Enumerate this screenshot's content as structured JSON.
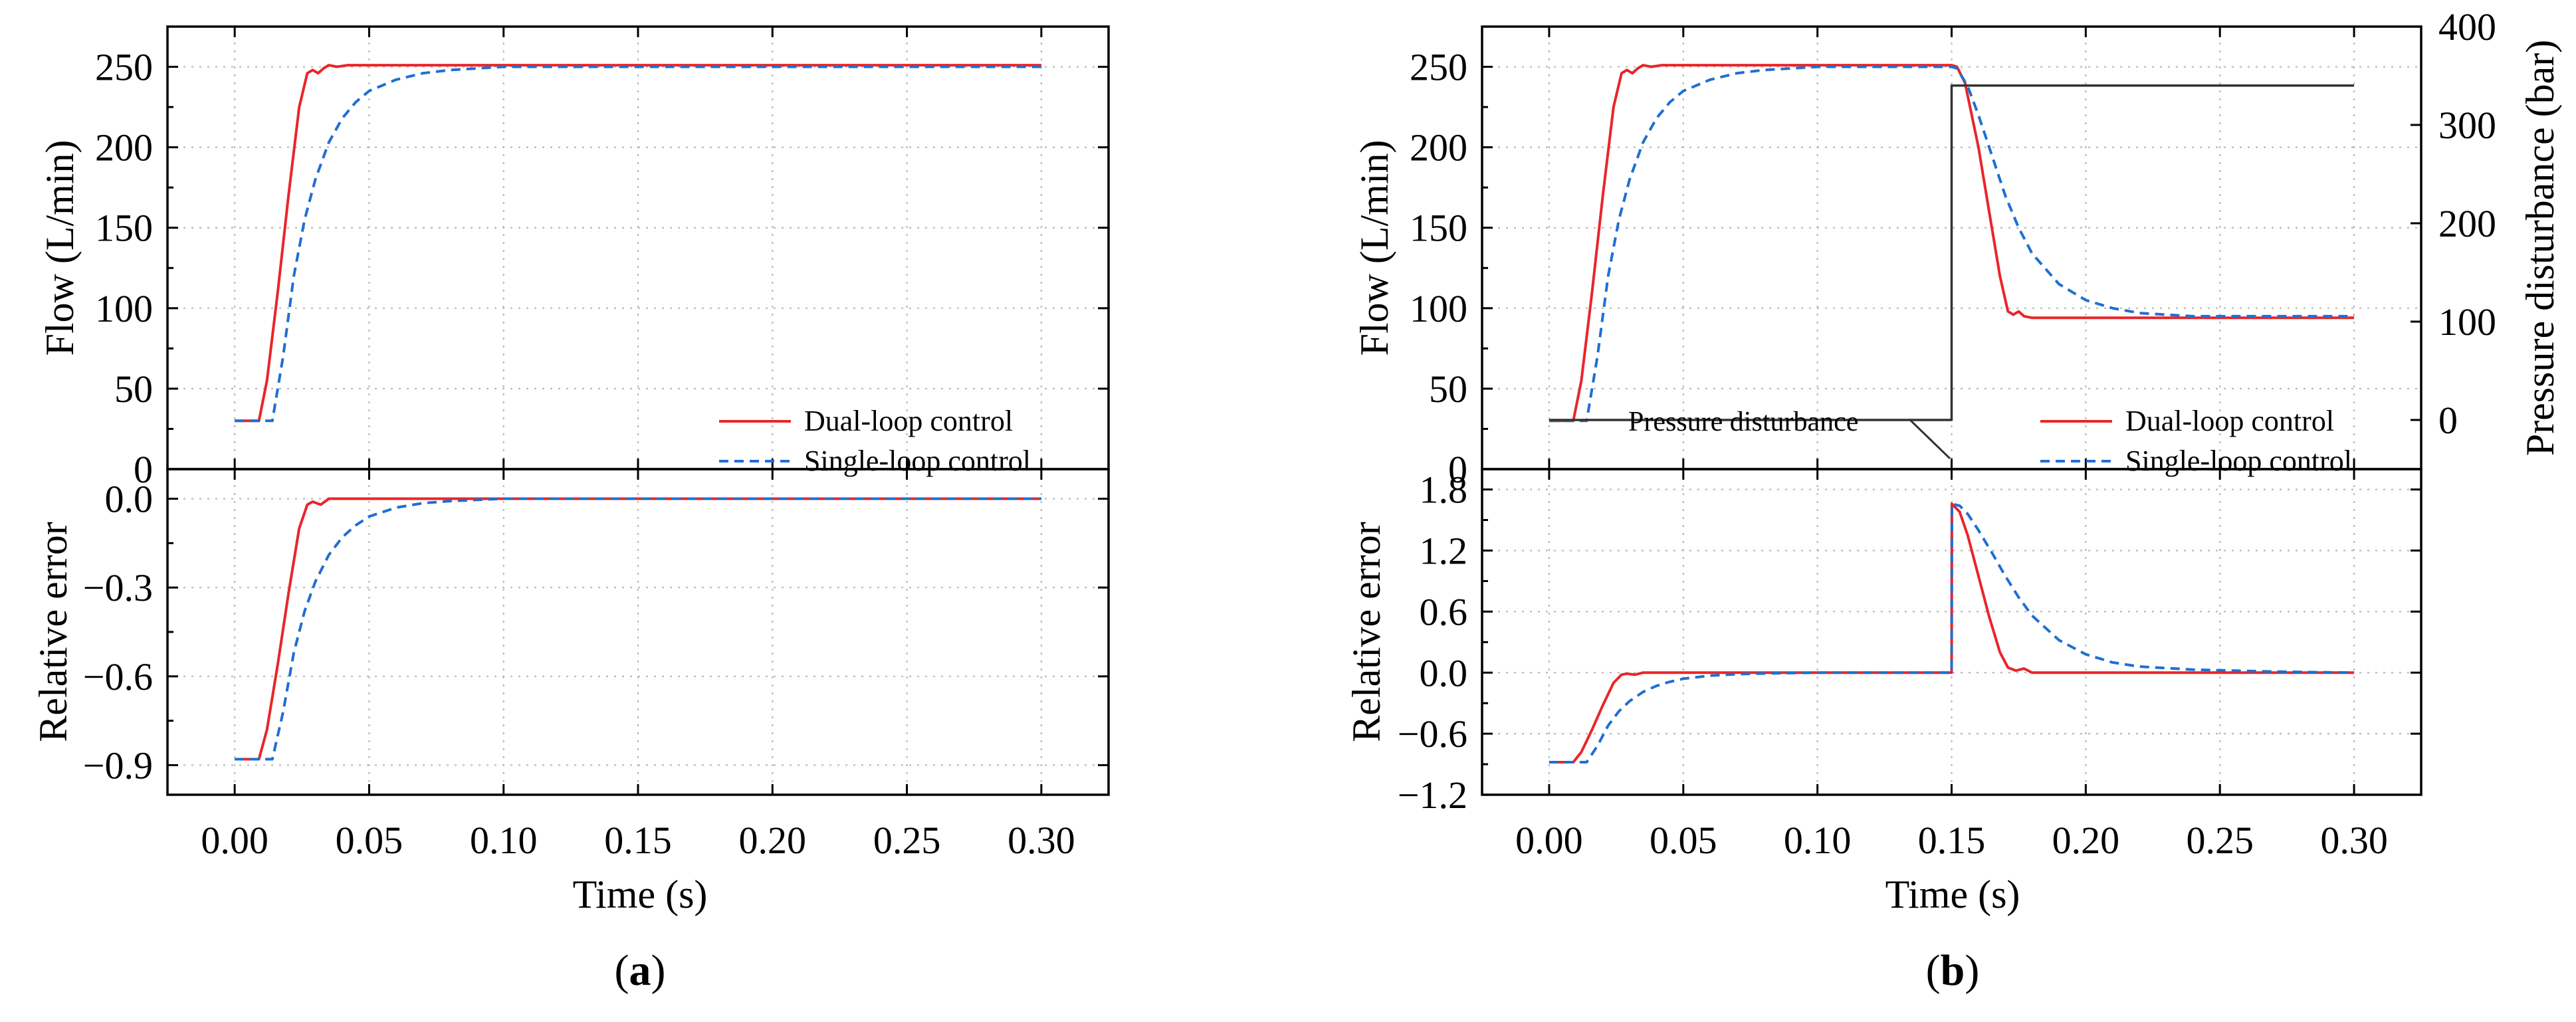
{
  "chart_data": [
    {
      "panel": "(a)",
      "type": "line",
      "xlabel": "Time (s)",
      "xlim": [
        -0.025,
        0.325
      ],
      "xticks": [
        "0.00",
        "0.05",
        "0.10",
        "0.15",
        "0.20",
        "0.25",
        "0.30"
      ],
      "subplots": [
        {
          "ylabel": "Flow (L/min)",
          "ylim": [
            0,
            275
          ],
          "yticks": [
            "0",
            "50",
            "100",
            "150",
            "200",
            "250"
          ],
          "legend_position": "bottom-right",
          "series": [
            {
              "name": "Dual-loop control",
              "color": "#e8262a",
              "x": [
                0,
                0.009,
                0.012,
                0.016,
                0.02,
                0.024,
                0.027,
                0.029,
                0.031,
                0.033,
                0.035,
                0.038,
                0.042,
                0.05,
                0.1,
                0.15,
                0.2,
                0.25,
                0.3
              ],
              "y": [
                30,
                30,
                55,
                110,
                170,
                225,
                246,
                248,
                246,
                249,
                251,
                250,
                251,
                251,
                251,
                251,
                251,
                251,
                251
              ]
            },
            {
              "name": "Single-loop control",
              "color": "#1f6fd1",
              "x": [
                0,
                0.014,
                0.018,
                0.022,
                0.026,
                0.03,
                0.035,
                0.04,
                0.045,
                0.05,
                0.06,
                0.07,
                0.08,
                0.09,
                0.1,
                0.12,
                0.15,
                0.2,
                0.25,
                0.3
              ],
              "y": [
                30,
                30,
                70,
                120,
                155,
                180,
                203,
                218,
                228,
                235,
                242,
                246,
                248,
                249,
                250,
                250,
                250,
                250,
                250,
                250
              ]
            }
          ]
        },
        {
          "ylabel": "Relative error",
          "ylim": [
            -1.0,
            0.1
          ],
          "yticks": [
            "0.0",
            "-0.3",
            "-0.6",
            "-0.9"
          ],
          "series": [
            {
              "name": "Dual-loop control",
              "color": "#e8262a",
              "x": [
                0,
                0.009,
                0.012,
                0.016,
                0.02,
                0.024,
                0.027,
                0.029,
                0.032,
                0.035,
                0.04,
                0.3
              ],
              "y": [
                -0.88,
                -0.88,
                -0.78,
                -0.56,
                -0.32,
                -0.1,
                -0.02,
                -0.01,
                -0.02,
                0.0,
                0.0,
                0.0
              ]
            },
            {
              "name": "Single-loop control",
              "color": "#1f6fd1",
              "x": [
                0,
                0.014,
                0.018,
                0.022,
                0.026,
                0.03,
                0.035,
                0.04,
                0.045,
                0.05,
                0.06,
                0.07,
                0.08,
                0.09,
                0.1,
                0.12,
                0.3
              ],
              "y": [
                -0.88,
                -0.88,
                -0.72,
                -0.52,
                -0.38,
                -0.28,
                -0.19,
                -0.13,
                -0.09,
                -0.06,
                -0.03,
                -0.015,
                -0.008,
                -0.004,
                0.0,
                0.0,
                0.0
              ]
            }
          ]
        }
      ]
    },
    {
      "panel": "(b)",
      "type": "line",
      "xlabel": "Time (s)",
      "xlim": [
        -0.025,
        0.325
      ],
      "xticks": [
        "0.00",
        "0.05",
        "0.10",
        "0.15",
        "0.20",
        "0.25",
        "0.30"
      ],
      "subplots": [
        {
          "ylabel": "Flow (L/min)",
          "ylim": [
            0,
            275
          ],
          "yticks": [
            "0",
            "50",
            "100",
            "150",
            "200",
            "250"
          ],
          "y2label": "Pressure disturbance (bar)",
          "y2lim": [
            -50,
            400
          ],
          "y2ticks": [
            "0",
            "100",
            "200",
            "300",
            "400"
          ],
          "legend_position": "bottom-right",
          "annotation": "Pressure disturbance",
          "series": [
            {
              "name": "Dual-loop control",
              "color": "#e8262a",
              "x": [
                0,
                0.009,
                0.012,
                0.016,
                0.02,
                0.024,
                0.027,
                0.029,
                0.031,
                0.033,
                0.035,
                0.038,
                0.042,
                0.05,
                0.1,
                0.15,
                0.152,
                0.155,
                0.16,
                0.164,
                0.168,
                0.171,
                0.173,
                0.175,
                0.177,
                0.18,
                0.185,
                0.2,
                0.25,
                0.3
              ],
              "y": [
                30,
                30,
                55,
                110,
                170,
                225,
                246,
                248,
                246,
                249,
                251,
                250,
                251,
                251,
                251,
                251,
                250,
                240,
                200,
                160,
                120,
                98,
                96,
                98,
                95,
                94,
                94,
                94,
                94,
                94
              ]
            },
            {
              "name": "Single-loop control",
              "color": "#1f6fd1",
              "x": [
                0,
                0.014,
                0.018,
                0.022,
                0.026,
                0.03,
                0.035,
                0.04,
                0.045,
                0.05,
                0.06,
                0.07,
                0.08,
                0.09,
                0.1,
                0.12,
                0.15,
                0.152,
                0.156,
                0.16,
                0.165,
                0.17,
                0.175,
                0.18,
                0.19,
                0.2,
                0.21,
                0.22,
                0.24,
                0.27,
                0.3
              ],
              "y": [
                30,
                30,
                70,
                120,
                155,
                180,
                203,
                218,
                228,
                235,
                242,
                246,
                248,
                249,
                250,
                250,
                250,
                249,
                238,
                220,
                195,
                170,
                150,
                134,
                115,
                105,
                100,
                97,
                95,
                95,
                95
              ]
            },
            {
              "name": "Pressure disturbance",
              "color": "#333333",
              "axis": "right",
              "x": [
                0,
                0.15,
                0.15,
                0.3
              ],
              "y": [
                0,
                0,
                340,
                340
              ]
            }
          ]
        },
        {
          "ylabel": "Relative error",
          "ylim": [
            -1.2,
            2.0
          ],
          "yticks": [
            "1.8",
            "1.2",
            "0.6",
            "0.0",
            "-0.6",
            "-1.2"
          ],
          "series": [
            {
              "name": "Dual-loop control",
              "color": "#e8262a",
              "x": [
                0,
                0.009,
                0.012,
                0.016,
                0.02,
                0.024,
                0.027,
                0.029,
                0.032,
                0.035,
                0.04,
                0.15,
                0.1501,
                0.153,
                0.156,
                0.16,
                0.164,
                0.168,
                0.171,
                0.174,
                0.177,
                0.18,
                0.2,
                0.3
              ],
              "y": [
                -0.88,
                -0.88,
                -0.78,
                -0.56,
                -0.32,
                -0.1,
                -0.02,
                -0.01,
                -0.02,
                0.0,
                0.0,
                0.0,
                1.66,
                1.58,
                1.35,
                0.95,
                0.55,
                0.2,
                0.05,
                0.02,
                0.04,
                0.0,
                0.0,
                0.0
              ]
            },
            {
              "name": "Single-loop control",
              "color": "#1f6fd1",
              "x": [
                0,
                0.014,
                0.018,
                0.022,
                0.026,
                0.03,
                0.035,
                0.04,
                0.045,
                0.05,
                0.06,
                0.07,
                0.08,
                0.09,
                0.1,
                0.12,
                0.15,
                0.1501,
                0.153,
                0.156,
                0.16,
                0.165,
                0.17,
                0.175,
                0.18,
                0.19,
                0.2,
                0.21,
                0.22,
                0.24,
                0.27,
                0.3
              ],
              "y": [
                -0.88,
                -0.88,
                -0.72,
                -0.52,
                -0.38,
                -0.28,
                -0.19,
                -0.13,
                -0.09,
                -0.06,
                -0.03,
                -0.015,
                -0.008,
                -0.004,
                0.0,
                0.0,
                0.0,
                1.66,
                1.64,
                1.56,
                1.4,
                1.18,
                0.95,
                0.74,
                0.56,
                0.32,
                0.18,
                0.1,
                0.06,
                0.03,
                0.01,
                0.0
              ]
            }
          ]
        }
      ]
    }
  ]
}
